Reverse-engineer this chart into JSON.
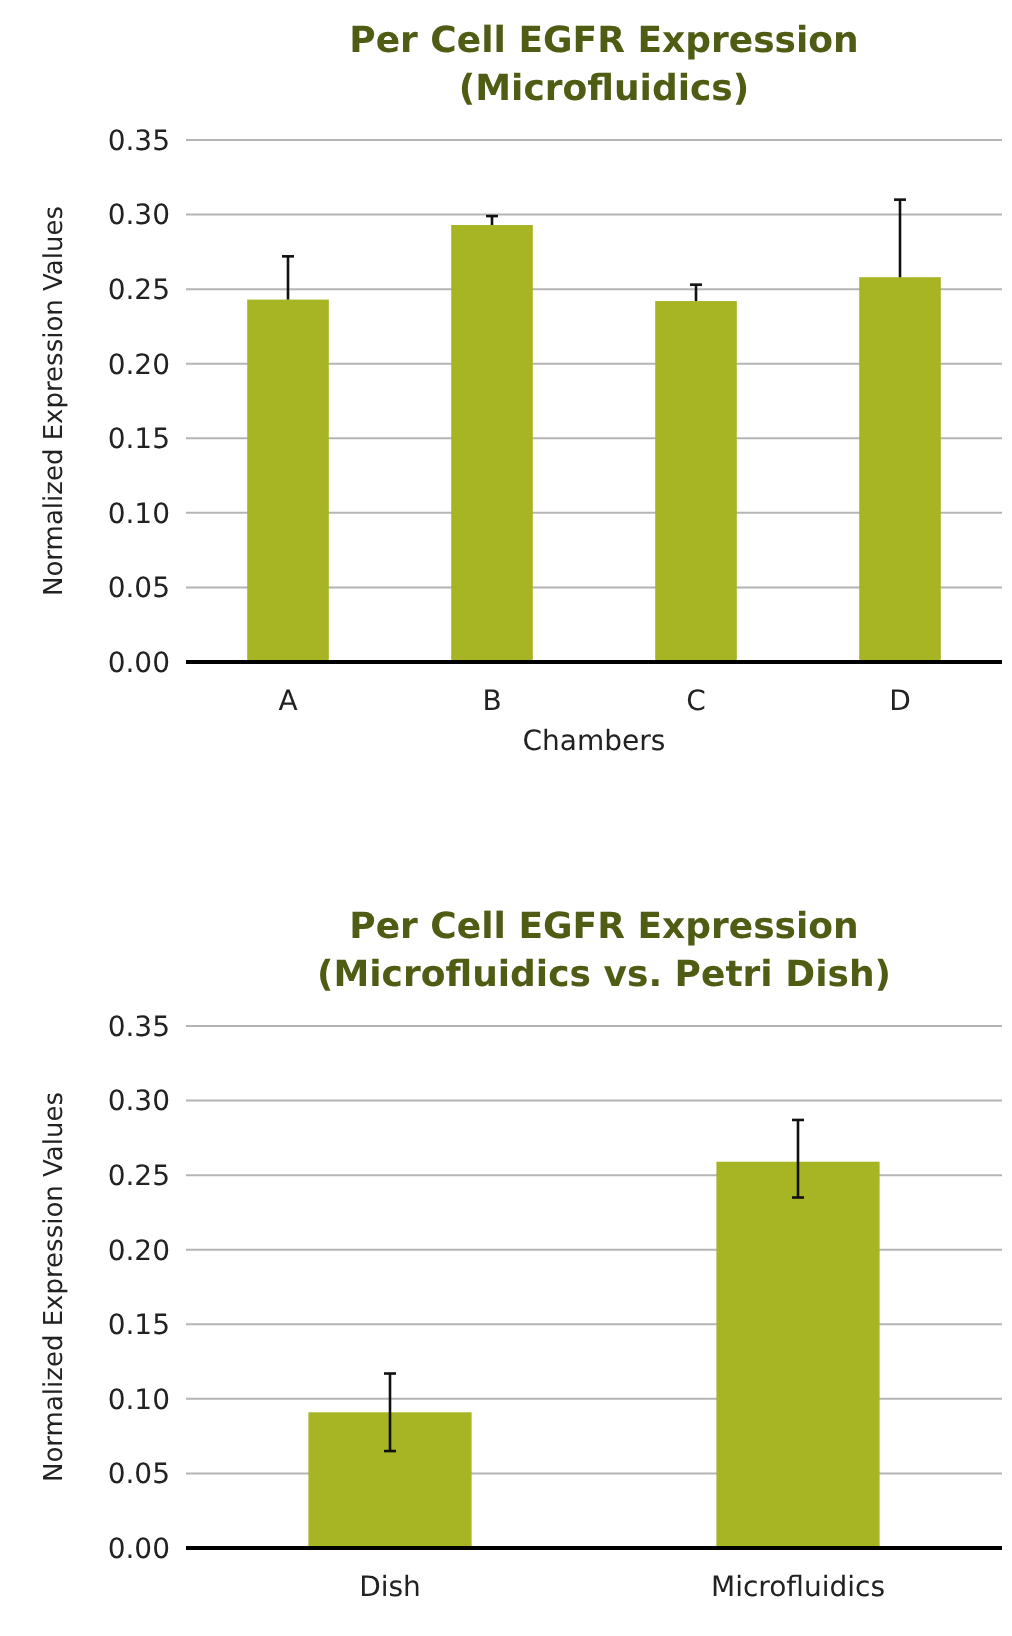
{
  "chart_data": [
    {
      "type": "bar",
      "title": "Per Cell EGFR Expression\n(Microfluidics)",
      "xlabel": "Chambers",
      "ylabel": "Normalized Expression Values",
      "categories": [
        "A",
        "B",
        "C",
        "D"
      ],
      "values": [
        0.243,
        0.293,
        0.242,
        0.258
      ],
      "errors": [
        [
          0.243,
          0.272
        ],
        [
          0.293,
          0.299
        ],
        [
          0.242,
          0.253
        ],
        [
          0.258,
          0.31
        ]
      ],
      "color": "#a7b424",
      "ylim": [
        0,
        0.35
      ],
      "yticks": [
        {
          "value": 0,
          "label": "0.00"
        },
        {
          "value": 0.05,
          "label": "0.05"
        },
        {
          "value": 0.1,
          "label": "0.10"
        },
        {
          "value": 0.15,
          "label": "0.15"
        },
        {
          "value": 0.2,
          "label": "0.20"
        },
        {
          "value": 0.25,
          "label": "0.25"
        },
        {
          "value": 0.3,
          "label": "0.30"
        },
        {
          "value": 0.35,
          "label": "0.35"
        }
      ],
      "grid": "y"
    },
    {
      "type": "bar",
      "title": "Per Cell EGFR Expression\n(Microfluidics vs. Petri Dish)",
      "ylabel": "Normalized Expression Values",
      "categories": [
        "Dish",
        "Microfluidics"
      ],
      "values": [
        0.091,
        0.259
      ],
      "errors": [
        [
          0.065,
          0.117
        ],
        [
          0.235,
          0.287
        ]
      ],
      "color": "#a7b424",
      "ylim": [
        0,
        0.35
      ],
      "yticks": [
        {
          "value": 0,
          "label": "0.00"
        },
        {
          "value": 0.05,
          "label": "0.05"
        },
        {
          "value": 0.1,
          "label": "0.10"
        },
        {
          "value": 0.15,
          "label": "0.15"
        },
        {
          "value": 0.2,
          "label": "0.20"
        },
        {
          "value": 0.25,
          "label": "0.25"
        },
        {
          "value": 0.3,
          "label": "0.30"
        },
        {
          "value": 0.35,
          "label": "0.35"
        }
      ],
      "grid": "y"
    }
  ]
}
